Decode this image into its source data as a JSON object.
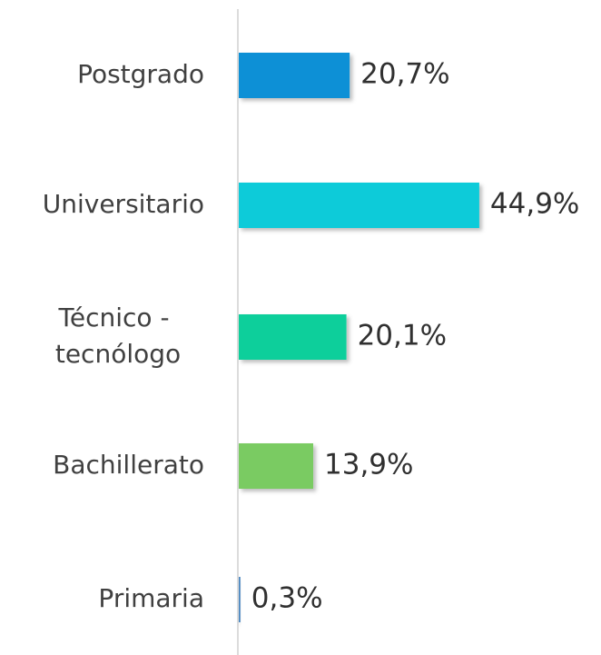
{
  "chart_data": {
    "type": "bar",
    "orientation": "horizontal",
    "categories": [
      "Postgrado",
      "Universitario",
      "Técnico - tecnólogo",
      "Bachillerato",
      "Primaria"
    ],
    "values": [
      20.7,
      44.9,
      20.1,
      13.9,
      0.3
    ],
    "value_labels": [
      "20,7%",
      "44,9%",
      "20,1%",
      "13,9%",
      "0,3%"
    ],
    "colors": [
      "#0a90d6",
      "#0bcbd9",
      "#10cf9b",
      "#7acb62",
      "#4a86c0"
    ]
  }
}
